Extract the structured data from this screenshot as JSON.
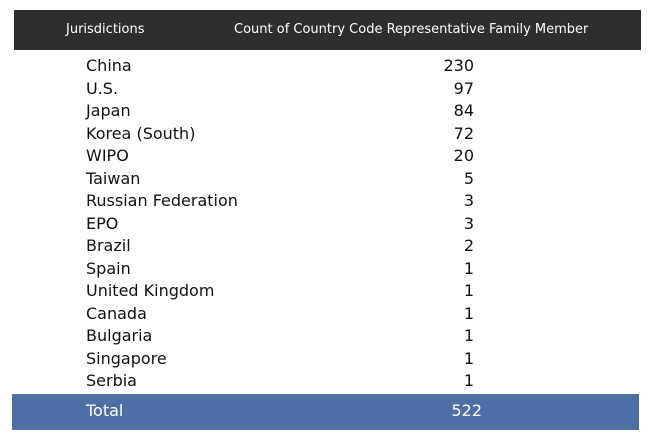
{
  "table": {
    "header": [
      "Jurisdictions",
      "Count of Country Code Representative Family Member"
    ],
    "rows": [
      [
        "China",
        230
      ],
      [
        "U.S.",
        97
      ],
      [
        "Japan",
        84
      ],
      [
        "Korea (South)",
        72
      ],
      [
        "WIPO",
        20
      ],
      [
        "Taiwan",
        5
      ],
      [
        "Russian Federation",
        3
      ],
      [
        "EPO",
        3
      ],
      [
        "Brazil",
        2
      ],
      [
        "Spain",
        1
      ],
      [
        "United Kingdom",
        1
      ],
      [
        "Canada",
        1
      ],
      [
        "Bulgaria",
        1
      ],
      [
        "Singapore",
        1
      ],
      [
        "Serbia",
        1
      ]
    ],
    "total": [
      "Total",
      522
    ]
  }
}
